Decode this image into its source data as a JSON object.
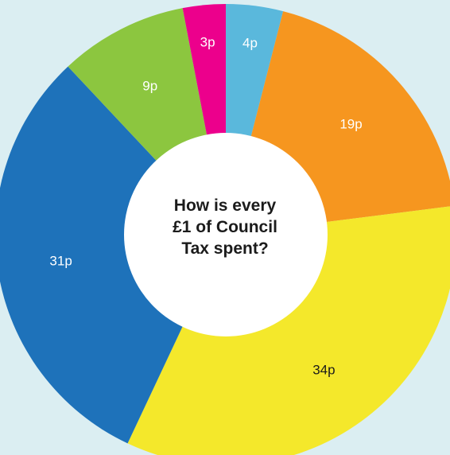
{
  "chart_data": {
    "type": "pie",
    "center_title_lines": [
      "How is every",
      "£1 of Council",
      "Tax spent?"
    ],
    "slices": [
      {
        "label": "4p",
        "value": 4,
        "color": "#5ab8dc",
        "label_color": "#ffffff"
      },
      {
        "label": "19p",
        "value": 19,
        "color": "#f6961f",
        "label_color": "#ffffff"
      },
      {
        "label": "34p",
        "value": 34,
        "color": "#f4e82b",
        "label_color": "#1b1b1b"
      },
      {
        "label": "31p",
        "value": 31,
        "color": "#1e72ba",
        "label_color": "#ffffff"
      },
      {
        "label": "9p",
        "value": 9,
        "color": "#8cc63f",
        "label_color": "#ffffff"
      },
      {
        "label": "3p",
        "value": 3,
        "color": "#ec008c",
        "label_color": "#ffffff"
      }
    ]
  }
}
